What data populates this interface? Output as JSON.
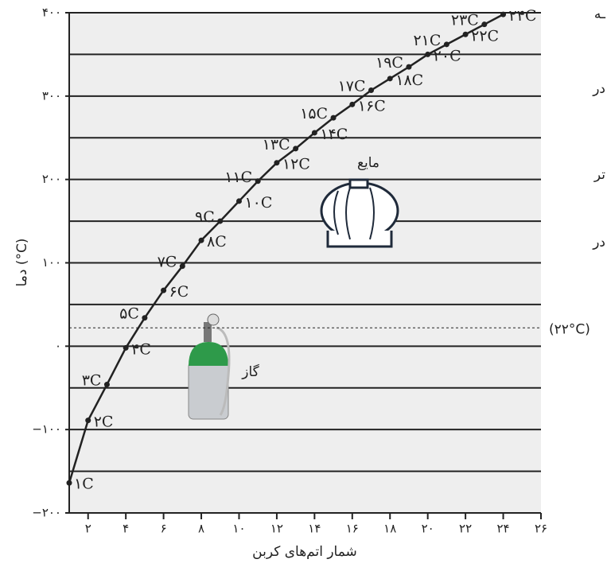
{
  "chart_data": {
    "type": "line",
    "x_label": "شمار اتم‌های کربن",
    "y_label": "دما (°C)",
    "x": [
      1,
      2,
      3,
      4,
      5,
      6,
      7,
      8,
      9,
      10,
      11,
      12,
      13,
      14,
      15,
      16,
      17,
      18,
      19,
      20,
      21,
      22,
      23,
      24
    ],
    "values": [
      -164,
      -89,
      -46,
      -2,
      34,
      67,
      96,
      127,
      150,
      174,
      198,
      220,
      237,
      256,
      274,
      290,
      307,
      321,
      335,
      350,
      362,
      374,
      386,
      398
    ],
    "point_labels": [
      "۱C",
      "۲C",
      "۳C",
      "۴C",
      "۵C",
      "۶C",
      "۷C",
      "۸C",
      "۹C",
      "۱۰C",
      "۱۱C",
      "۱۲C",
      "۱۳C",
      "۱۴C",
      "۱۵C",
      "۱۶C",
      "۱۷C",
      "۱۸C",
      "۱۹C",
      "۲۰C",
      "۲۱C",
      "۲۲C",
      "۲۳C",
      "۲۴C"
    ],
    "color": "#222222",
    "xlim": [
      1,
      26
    ],
    "ylim": [
      -200,
      400
    ],
    "xticks": [
      {
        "value": 2,
        "label": "۲"
      },
      {
        "value": 4,
        "label": "۴"
      },
      {
        "value": 6,
        "label": "۶"
      },
      {
        "value": 8,
        "label": "۸"
      },
      {
        "value": 10,
        "label": "۱۰"
      },
      {
        "value": 12,
        "label": "۱۲"
      },
      {
        "value": 14,
        "label": "۱۴"
      },
      {
        "value": 16,
        "label": "۱۶"
      },
      {
        "value": 18,
        "label": "۱۸"
      },
      {
        "value": 20,
        "label": "۲۰"
      },
      {
        "value": 22,
        "label": "۲۲"
      },
      {
        "value": 24,
        "label": "۲۴"
      },
      {
        "value": 26,
        "label": "۲۶"
      }
    ],
    "yticks": [
      {
        "value": -200,
        "label": "−۲۰۰"
      },
      {
        "value": -100,
        "label": "−۱۰۰"
      },
      {
        "value": 0,
        "label": "۰"
      },
      {
        "value": 100,
        "label": "۱۰۰"
      },
      {
        "value": 200,
        "label": "۲۰۰"
      },
      {
        "value": 300,
        "label": "۳۰۰"
      },
      {
        "value": 400,
        "label": "۴۰۰"
      }
    ],
    "minor_grid": [
      -150,
      -50,
      50,
      150,
      250,
      350
    ],
    "grid": true,
    "reference_line": {
      "value": 22,
      "label": "(۲۲°C)"
    },
    "annotations": [
      "مایع",
      "گاز"
    ],
    "side_fragments": [
      "ـه",
      "در",
      "تر",
      "در"
    ]
  }
}
